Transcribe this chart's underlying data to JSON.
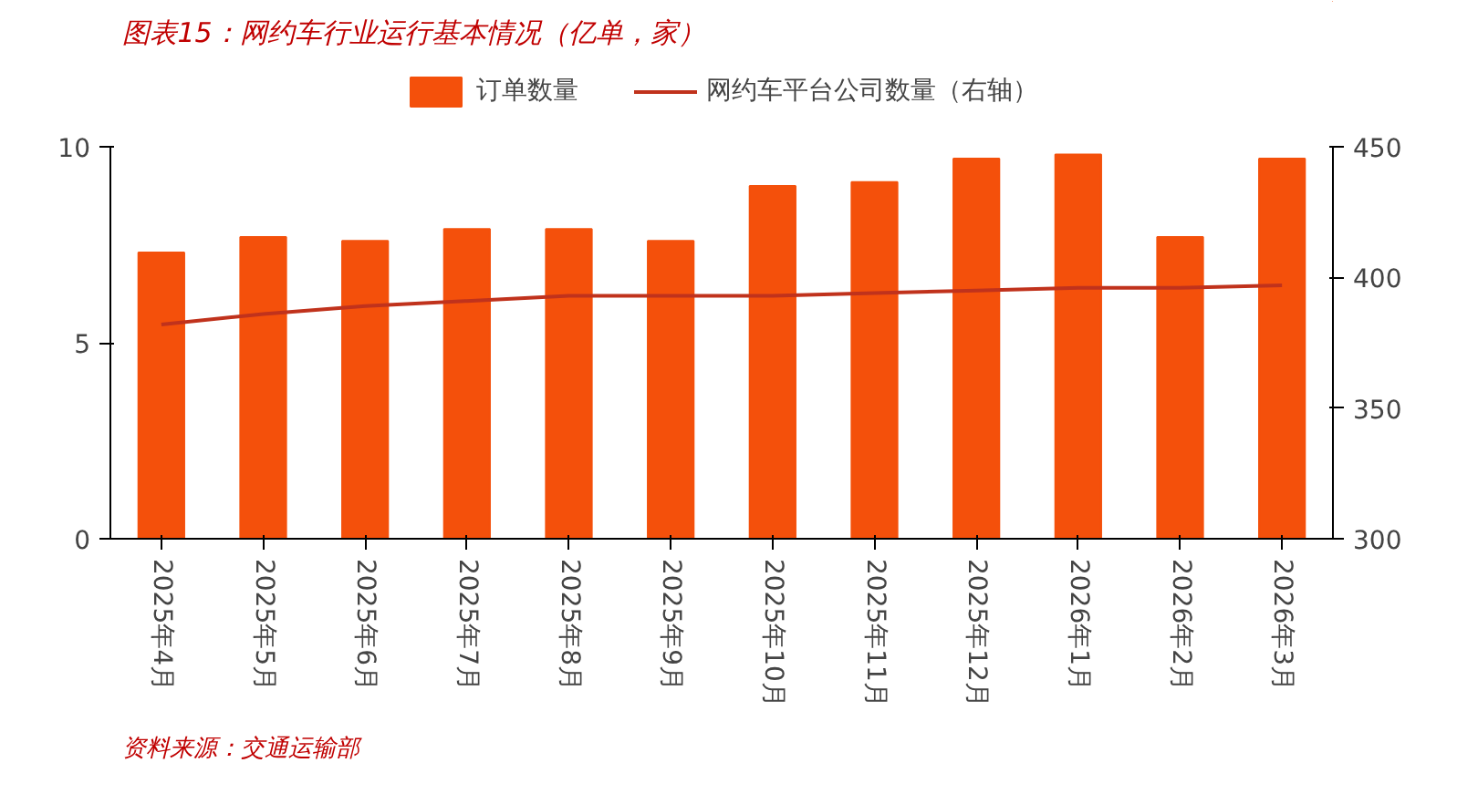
{
  "chart_data": {
    "type": "bar",
    "title": "图表15：网约车行业运行基本情况（亿单，家）",
    "categories": [
      "2025年4月",
      "2025年5月",
      "2025年6月",
      "2025年7月",
      "2025年8月",
      "2025年9月",
      "2025年10月",
      "2025年11月",
      "2025年12月",
      "2026年1月",
      "2026年2月",
      "2026年3月"
    ],
    "series": [
      {
        "name": "订单数量",
        "color": "#f4500b",
        "values": [
          7.3,
          7.7,
          7.6,
          7.9,
          7.9,
          7.6,
          9.0,
          9.1,
          9.7,
          9.8,
          7.7,
          9.7
        ]
      },
      {
        "name": "网约车平台公司数量（右轴）",
        "type": "line",
        "axis": "y2",
        "color": "#c0321c",
        "values": [
          382,
          386,
          389,
          391,
          393,
          393,
          393,
          394,
          395,
          396,
          396,
          397
        ]
      }
    ],
    "ylim": [
      0,
      10
    ],
    "yticks": [
      0,
      5,
      10
    ],
    "y2lim": [
      300,
      450
    ],
    "y2ticks": [
      300,
      350,
      400,
      450
    ],
    "legend": "top",
    "grid": false,
    "annotations": [
      "资料来源：交通运输部"
    ]
  }
}
